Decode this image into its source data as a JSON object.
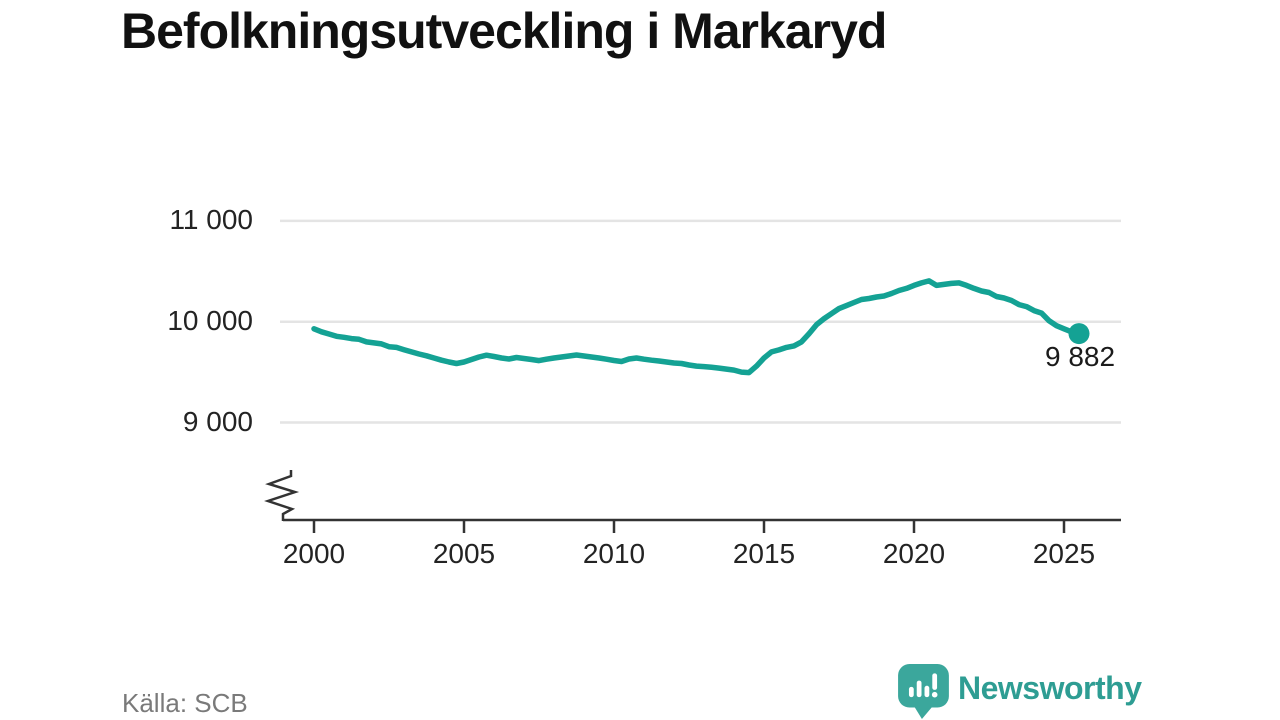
{
  "title": "Befolkningsutveckling i Markaryd",
  "source": "Källa: SCB",
  "branding": {
    "name": "Newsworthy"
  },
  "colors": {
    "line": "#14A294",
    "logo": "#3BA79C",
    "logo_text": "#2E9D93",
    "grid": "#E4E4E4",
    "axis": "#333333",
    "title_text": "#111111",
    "tick_text": "#232323",
    "source_text": "#7A7A7A",
    "label_text": "#1B1B1B"
  },
  "chart_data": {
    "type": "line",
    "title": "Befolkningsutveckling i Markaryd",
    "xlabel": "",
    "ylabel": "",
    "grid": "horizontal-only",
    "legend": "none",
    "axis_break_at_bottom": true,
    "x_range": [
      2000,
      2025.5
    ],
    "y_axis_range": [
      9000,
      11000
    ],
    "x_ticks": [
      2000,
      2005,
      2010,
      2015,
      2020,
      2025
    ],
    "y_ticks": [
      {
        "value": 9000,
        "label": "9 000"
      },
      {
        "value": 10000,
        "label": "10 000"
      },
      {
        "value": 11000,
        "label": "11 000"
      }
    ],
    "end_point_label": "9 882",
    "series": [
      {
        "name": "Befolkning i Markaryd",
        "points": [
          [
            2000.0,
            9930
          ],
          [
            2000.25,
            9900
          ],
          [
            2000.5,
            9878
          ],
          [
            2000.75,
            9855
          ],
          [
            2001.0,
            9845
          ],
          [
            2001.25,
            9832
          ],
          [
            2001.5,
            9825
          ],
          [
            2001.75,
            9800
          ],
          [
            2002.0,
            9790
          ],
          [
            2002.25,
            9780
          ],
          [
            2002.5,
            9752
          ],
          [
            2002.75,
            9745
          ],
          [
            2003.0,
            9722
          ],
          [
            2003.25,
            9700
          ],
          [
            2003.5,
            9680
          ],
          [
            2003.75,
            9662
          ],
          [
            2004.0,
            9640
          ],
          [
            2004.25,
            9618
          ],
          [
            2004.5,
            9600
          ],
          [
            2004.75,
            9585
          ],
          [
            2005.0,
            9600
          ],
          [
            2005.25,
            9625
          ],
          [
            2005.5,
            9650
          ],
          [
            2005.75,
            9668
          ],
          [
            2006.0,
            9655
          ],
          [
            2006.25,
            9640
          ],
          [
            2006.5,
            9630
          ],
          [
            2006.75,
            9645
          ],
          [
            2007.0,
            9635
          ],
          [
            2007.25,
            9625
          ],
          [
            2007.5,
            9614
          ],
          [
            2007.75,
            9628
          ],
          [
            2008.0,
            9640
          ],
          [
            2008.25,
            9650
          ],
          [
            2008.5,
            9660
          ],
          [
            2008.75,
            9670
          ],
          [
            2009.0,
            9660
          ],
          [
            2009.25,
            9650
          ],
          [
            2009.5,
            9640
          ],
          [
            2009.75,
            9628
          ],
          [
            2010.0,
            9615
          ],
          [
            2010.25,
            9605
          ],
          [
            2010.5,
            9630
          ],
          [
            2010.75,
            9640
          ],
          [
            2011.0,
            9628
          ],
          [
            2011.25,
            9618
          ],
          [
            2011.5,
            9610
          ],
          [
            2011.75,
            9600
          ],
          [
            2012.0,
            9590
          ],
          [
            2012.25,
            9585
          ],
          [
            2012.5,
            9570
          ],
          [
            2012.75,
            9560
          ],
          [
            2013.0,
            9555
          ],
          [
            2013.25,
            9548
          ],
          [
            2013.5,
            9540
          ],
          [
            2013.75,
            9530
          ],
          [
            2014.0,
            9520
          ],
          [
            2014.25,
            9500
          ],
          [
            2014.5,
            9495
          ],
          [
            2014.75,
            9560
          ],
          [
            2015.0,
            9640
          ],
          [
            2015.25,
            9700
          ],
          [
            2015.5,
            9720
          ],
          [
            2015.75,
            9745
          ],
          [
            2016.0,
            9760
          ],
          [
            2016.25,
            9800
          ],
          [
            2016.5,
            9880
          ],
          [
            2016.75,
            9970
          ],
          [
            2017.0,
            10030
          ],
          [
            2017.25,
            10080
          ],
          [
            2017.5,
            10130
          ],
          [
            2017.75,
            10160
          ],
          [
            2018.0,
            10190
          ],
          [
            2018.25,
            10220
          ],
          [
            2018.5,
            10230
          ],
          [
            2018.75,
            10245
          ],
          [
            2019.0,
            10255
          ],
          [
            2019.25,
            10280
          ],
          [
            2019.5,
            10310
          ],
          [
            2019.75,
            10330
          ],
          [
            2020.0,
            10360
          ],
          [
            2020.25,
            10385
          ],
          [
            2020.5,
            10405
          ],
          [
            2020.75,
            10360
          ],
          [
            2021.0,
            10370
          ],
          [
            2021.25,
            10380
          ],
          [
            2021.5,
            10385
          ],
          [
            2021.75,
            10360
          ],
          [
            2022.0,
            10330
          ],
          [
            2022.25,
            10305
          ],
          [
            2022.5,
            10290
          ],
          [
            2022.75,
            10250
          ],
          [
            2023.0,
            10235
          ],
          [
            2023.25,
            10210
          ],
          [
            2023.5,
            10170
          ],
          [
            2023.75,
            10150
          ],
          [
            2024.0,
            10110
          ],
          [
            2024.25,
            10085
          ],
          [
            2024.5,
            10010
          ],
          [
            2024.75,
            9960
          ],
          [
            2025.0,
            9930
          ],
          [
            2025.25,
            9900
          ],
          [
            2025.5,
            9882
          ]
        ]
      }
    ]
  }
}
